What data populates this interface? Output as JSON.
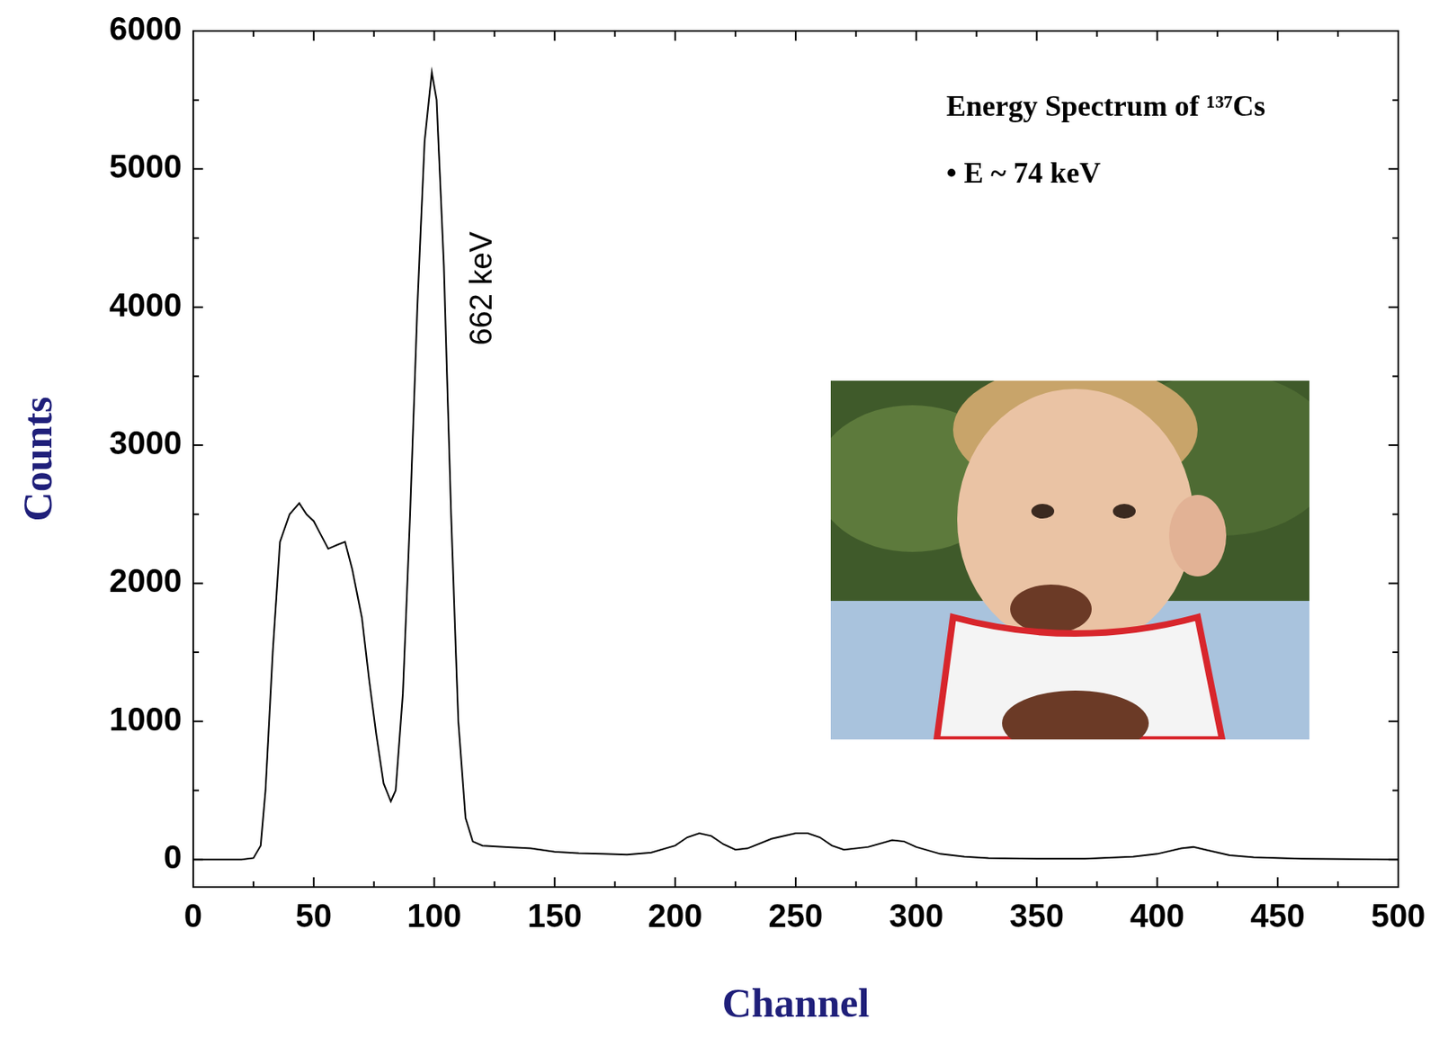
{
  "chart_data": {
    "type": "line",
    "title": "Energy Spectrum of ¹³⁷Cs",
    "annotations": [
      "662 keV",
      "• E ~ 74 keV"
    ],
    "x_label": "Channel",
    "y_label": "Counts",
    "color": "#000000",
    "grid": false,
    "x": [
      0,
      10,
      20,
      25,
      28,
      30,
      33,
      36,
      40,
      44,
      47,
      50,
      53,
      56,
      60,
      63,
      66,
      70,
      73,
      76,
      79,
      82,
      84,
      87,
      90,
      93,
      96,
      99,
      101,
      104,
      107,
      110,
      113,
      116,
      120,
      130,
      140,
      150,
      160,
      170,
      180,
      190,
      200,
      205,
      210,
      215,
      220,
      225,
      230,
      240,
      250,
      255,
      260,
      265,
      270,
      280,
      290,
      295,
      300,
      310,
      320,
      330,
      350,
      370,
      390,
      400,
      410,
      415,
      420,
      430,
      440,
      460,
      480,
      500
    ],
    "values": [
      0,
      0,
      0,
      10,
      100,
      500,
      1500,
      2300,
      2500,
      2580,
      2500,
      2450,
      2350,
      2250,
      2280,
      2300,
      2100,
      1750,
      1300,
      900,
      550,
      420,
      500,
      1200,
      2500,
      4000,
      5200,
      5700,
      5500,
      4300,
      2500,
      1000,
      300,
      130,
      100,
      90,
      80,
      55,
      45,
      40,
      35,
      50,
      100,
      160,
      190,
      170,
      110,
      70,
      80,
      150,
      190,
      190,
      160,
      100,
      70,
      90,
      140,
      130,
      90,
      40,
      20,
      10,
      5,
      5,
      20,
      40,
      80,
      90,
      70,
      30,
      15,
      5,
      2,
      0
    ],
    "xlim": [
      0,
      500
    ],
    "xticks": [
      0,
      50,
      100,
      150,
      200,
      250,
      300,
      350,
      400,
      450,
      500
    ],
    "ylim": [
      -200,
      6000
    ],
    "yticks": [
      0,
      1000,
      2000,
      3000,
      4000,
      5000,
      6000
    ]
  }
}
